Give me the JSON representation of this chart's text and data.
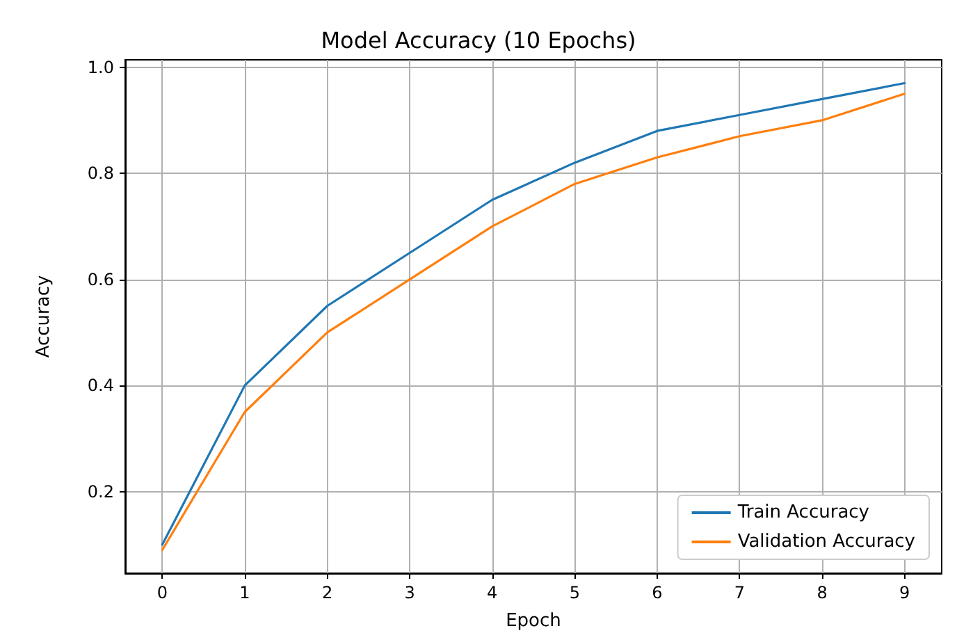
{
  "chart_data": {
    "type": "line",
    "title": "Model Accuracy (10 Epochs)",
    "xlabel": "Epoch",
    "ylabel": "Accuracy",
    "x": [
      0,
      1,
      2,
      3,
      4,
      5,
      6,
      7,
      8,
      9
    ],
    "series": [
      {
        "name": "Train Accuracy",
        "color": "#1f77b4",
        "values": [
          0.1,
          0.4,
          0.55,
          0.65,
          0.75,
          0.82,
          0.88,
          0.91,
          0.94,
          0.97
        ]
      },
      {
        "name": "Validation Accuracy",
        "color": "#ff7f0e",
        "values": [
          0.09,
          0.35,
          0.5,
          0.6,
          0.7,
          0.78,
          0.83,
          0.87,
          0.9,
          0.95
        ]
      }
    ],
    "xlim": [
      -0.45,
      9.45
    ],
    "xticks": [
      0,
      1,
      2,
      3,
      4,
      5,
      6,
      7,
      8,
      9
    ],
    "ylim": [
      0.046,
      1.014
    ],
    "yticks": [
      0.2,
      0.4,
      0.6,
      0.8,
      {
        "value": 1,
        "label": "1.0"
      }
    ],
    "grid": true,
    "legend": "bottom right",
    "marker": "none",
    "line_style": "solid"
  }
}
